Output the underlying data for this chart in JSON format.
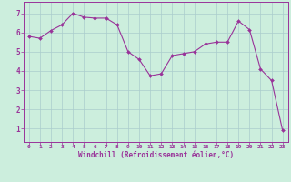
{
  "x": [
    0,
    1,
    2,
    3,
    4,
    5,
    6,
    7,
    8,
    9,
    10,
    11,
    12,
    13,
    14,
    15,
    16,
    17,
    18,
    19,
    20,
    21,
    22,
    23
  ],
  "y": [
    5.8,
    5.7,
    6.1,
    6.4,
    7.0,
    6.8,
    6.75,
    6.75,
    6.4,
    5.0,
    4.6,
    3.75,
    3.85,
    4.8,
    4.9,
    5.0,
    5.4,
    5.5,
    5.5,
    6.6,
    6.15,
    4.1,
    3.5,
    0.9
  ],
  "line_color": "#993399",
  "marker_color": "#993399",
  "bg_color": "#cceedd",
  "grid_color": "#aacccc",
  "xlabel": "Windchill (Refroidissement éolien,°C)",
  "tick_color": "#993399",
  "yticks": [
    1,
    2,
    3,
    4,
    5,
    6,
    7
  ],
  "xticks": [
    0,
    1,
    2,
    3,
    4,
    5,
    6,
    7,
    8,
    9,
    10,
    11,
    12,
    13,
    14,
    15,
    16,
    17,
    18,
    19,
    20,
    21,
    22,
    23
  ],
  "ylim": [
    0.3,
    7.6
  ],
  "xlim": [
    -0.5,
    23.5
  ],
  "figsize": [
    3.2,
    2.0
  ],
  "dpi": 100
}
